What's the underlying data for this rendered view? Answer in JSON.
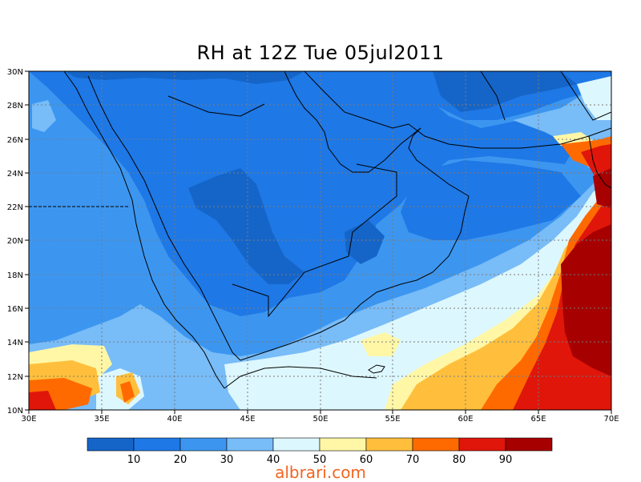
{
  "title": "RH at 12Z Tue 05jul2011",
  "watermark": "albrari.com",
  "axes": {
    "x_ticks": [
      "30E",
      "35E",
      "40E",
      "45E",
      "50E",
      "55E",
      "60E",
      "65E",
      "70E"
    ],
    "y_ticks": [
      "30N",
      "28N",
      "26N",
      "24N",
      "22N",
      "20N",
      "18N",
      "16N",
      "14N",
      "12N",
      "10N"
    ]
  },
  "colorbar": {
    "colors": [
      "#1565c8",
      "#1e78e6",
      "#3c96f0",
      "#78bcf8",
      "#ddf7ff",
      "#fff7a6",
      "#ffbf3c",
      "#ff6a00",
      "#e0160a",
      "#a60000"
    ],
    "labels": [
      "10",
      "20",
      "30",
      "40",
      "50",
      "60",
      "70",
      "80",
      "90"
    ]
  },
  "colors": {
    "background": "#ffffff",
    "watermark": "#f26522"
  }
}
